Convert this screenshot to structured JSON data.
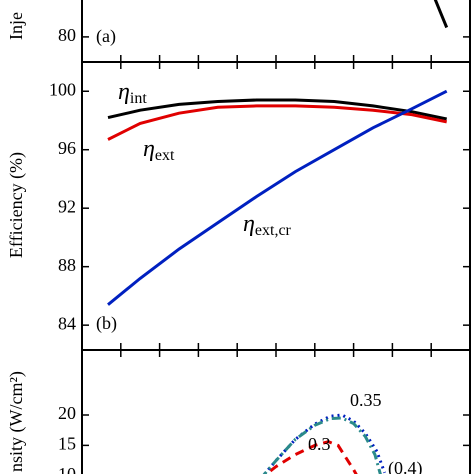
{
  "chart_data": [
    {
      "type": "line",
      "ylabel": "Inje",
      "panel_label": "(a)",
      "xlim": [
        0,
        1
      ],
      "xticks": [
        0.1,
        0.2,
        0.3,
        0.4,
        0.5,
        0.6,
        0.7,
        0.8,
        0.9
      ],
      "ylim": [
        78.4,
        90
      ],
      "yticks": [
        80
      ],
      "series": [
        {
          "color": "#000000",
          "dash": "solid",
          "x": [
            0.91,
            0.925,
            0.94
          ],
          "values": [
            82.4,
            81.5,
            80.6
          ]
        }
      ],
      "annotations": []
    },
    {
      "type": "line",
      "ylabel": "Efficiency (%)",
      "panel_label": "(b)",
      "xlim": [
        0,
        1
      ],
      "xticks": [
        0.1,
        0.2,
        0.3,
        0.4,
        0.5,
        0.6,
        0.7,
        0.8,
        0.9
      ],
      "ylim": [
        82.3,
        102
      ],
      "yticks": [
        84,
        88,
        92,
        96,
        100
      ],
      "series": [
        {
          "color": "#000000",
          "dash": "solid",
          "x": [
            0.067,
            0.15,
            0.25,
            0.35,
            0.45,
            0.55,
            0.65,
            0.75,
            0.85,
            0.94
          ],
          "values": [
            98.2,
            98.7,
            99.1,
            99.3,
            99.4,
            99.4,
            99.3,
            99.0,
            98.6,
            98.1
          ]
        },
        {
          "color": "#e00000",
          "dash": "solid",
          "x": [
            0.067,
            0.15,
            0.25,
            0.35,
            0.45,
            0.55,
            0.65,
            0.75,
            0.85,
            0.94
          ],
          "values": [
            96.7,
            97.8,
            98.5,
            98.9,
            99.0,
            99.0,
            98.9,
            98.7,
            98.4,
            97.9
          ]
        },
        {
          "color": "#0020c0",
          "dash": "solid",
          "x": [
            0.067,
            0.15,
            0.25,
            0.35,
            0.45,
            0.55,
            0.65,
            0.75,
            0.85,
            0.94
          ],
          "values": [
            85.4,
            87.2,
            89.2,
            91.0,
            92.8,
            94.5,
            96.0,
            97.5,
            98.8,
            100.0
          ]
        }
      ],
      "annotations": [
        {
          "symbol": "η",
          "sub": "int",
          "color": "#000000"
        },
        {
          "symbol": "η",
          "sub": "ext",
          "color": "#000000"
        },
        {
          "symbol": "η",
          "sub": "ext,cr",
          "color": "#000000"
        }
      ]
    },
    {
      "type": "line",
      "ylabel": "nsity (W/cm²)",
      "panel_label": null,
      "xlim": [
        0,
        1
      ],
      "xticks": [
        0.1,
        0.2,
        0.3,
        0.4,
        0.5,
        0.6,
        0.7,
        0.8,
        0.9
      ],
      "ylim": [
        9.3,
        30.7
      ],
      "yticks": [
        10,
        15,
        20
      ],
      "series": [
        {
          "color": "#e00000",
          "dash": "dashed",
          "x": [
            0.455,
            0.5,
            0.55,
            0.6,
            0.635,
            0.66,
            0.68,
            0.7,
            0.715
          ],
          "values": [
            9.3,
            11.5,
            13.5,
            15,
            15.6,
            15,
            13,
            11,
            9.3
          ]
        },
        {
          "color": "#0020c0",
          "dash": "dotted",
          "x": [
            0.46,
            0.5,
            0.55,
            0.6,
            0.64,
            0.67,
            0.7,
            0.73,
            0.76,
            0.78
          ],
          "values": [
            9.5,
            12.5,
            16,
            18.5,
            19.8,
            20,
            19,
            17,
            14,
            10.5
          ]
        },
        {
          "color": "#2a8a8a",
          "dash": "dashdot",
          "x": [
            0.46,
            0.5,
            0.55,
            0.6,
            0.64,
            0.67,
            0.7,
            0.73,
            0.755,
            0.77
          ],
          "values": [
            9.5,
            12.5,
            16,
            18.3,
            19.4,
            19.5,
            18.6,
            16.5,
            13.5,
            10
          ]
        }
      ],
      "annotations": [
        {
          "symbol": "0.35",
          "color": "#0020c0"
        },
        {
          "symbol": "0.3",
          "color": "#e00000"
        },
        {
          "symbol": "(0.4)",
          "color": "#2a8a8a"
        }
      ]
    }
  ]
}
